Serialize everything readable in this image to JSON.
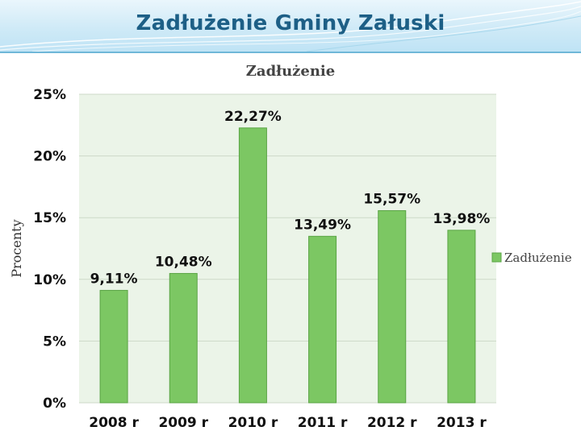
{
  "slide": {
    "title": "Zadłużenie Gminy Załuski"
  },
  "colors": {
    "bar": "#7cc763",
    "bar_stroke": "#5aa445",
    "plot_bg": "#ebf4e8",
    "grid": "#cdd9c8"
  },
  "chart_data": {
    "type": "bar",
    "title": "Zadłużenie",
    "ylabel": "Procenty",
    "xlabel": "",
    "categories": [
      "2008 r",
      "2009 r",
      "2010 r",
      "2011 r",
      "2012 r",
      "2013 r"
    ],
    "series": [
      {
        "name": "Zadłużenie",
        "values": [
          9.11,
          10.48,
          22.27,
          13.49,
          15.57,
          13.98
        ],
        "labels": [
          "9,11%",
          "10,48%",
          "22,27%",
          "13,49%",
          "15,57%",
          "13,98%"
        ]
      }
    ],
    "ylim": [
      0,
      25
    ],
    "yticks": [
      0,
      5,
      10,
      15,
      20,
      25
    ],
    "ytick_labels": [
      "0%",
      "5%",
      "10%",
      "15%",
      "20%",
      "25%"
    ],
    "grid": true,
    "legend_position": "right"
  }
}
